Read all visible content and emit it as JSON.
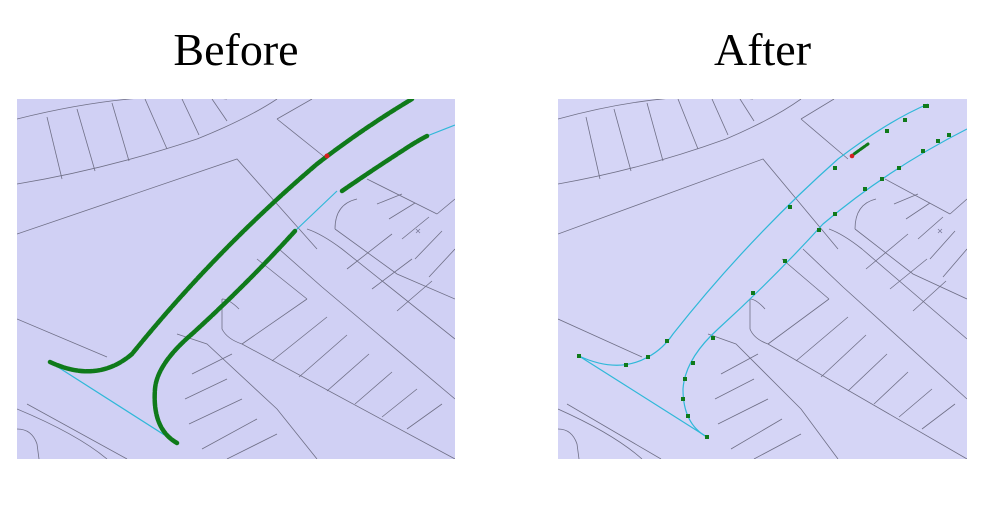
{
  "labels": {
    "before": "Before",
    "after": "After"
  },
  "colors": {
    "panel_background": "#d0d0f4",
    "parcel_lines": "#6f6f86",
    "road_centerline": "#2fb8d8",
    "highlight": "#0f7a1a",
    "marker": "#d42020"
  }
}
